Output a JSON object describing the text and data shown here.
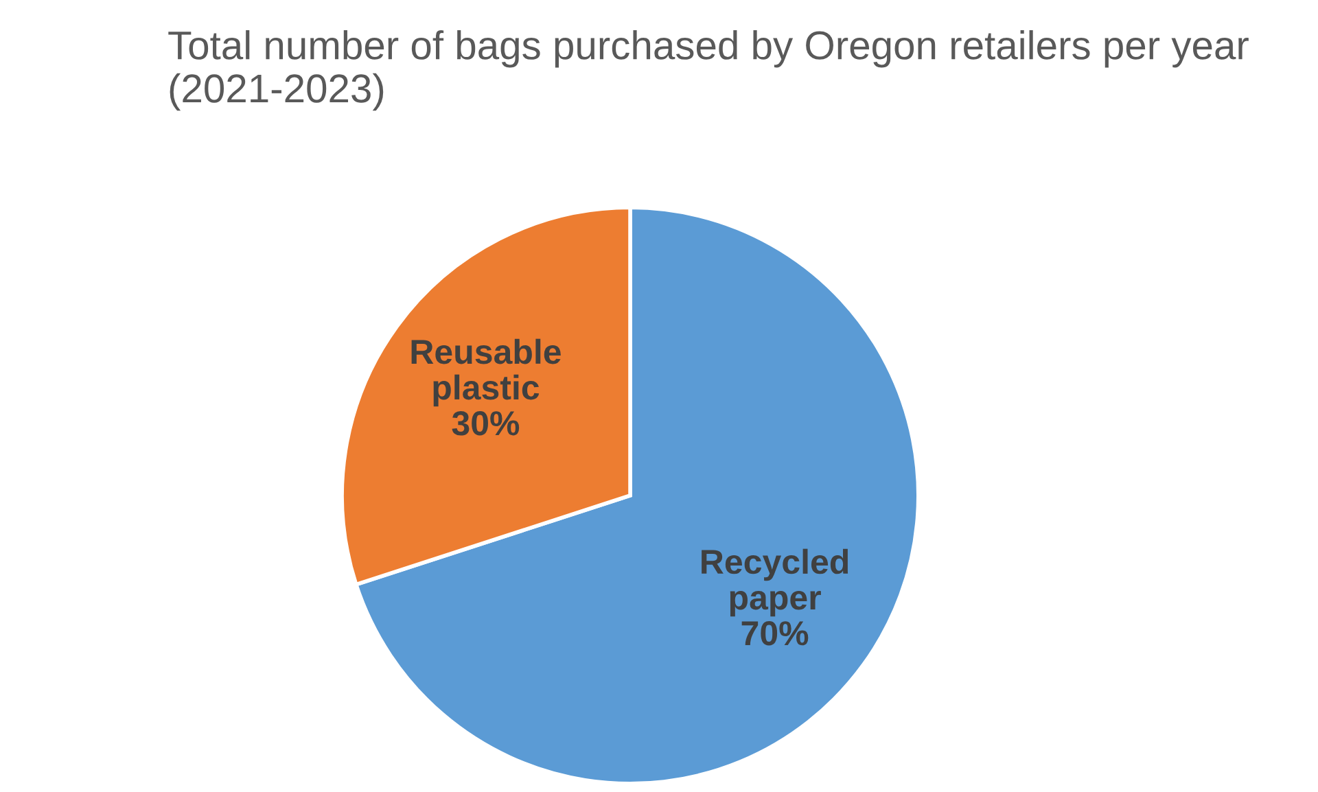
{
  "chart_data": {
    "type": "pie",
    "title": "Total number of bags purchased by Oregon retailers per year (2021-2023)",
    "categories": [
      "Recycled paper",
      "Reusable plastic"
    ],
    "values": [
      70,
      30
    ],
    "value_labels": [
      "70%",
      "30%"
    ],
    "colors": [
      "#5b9bd5",
      "#ed7d31"
    ],
    "legend": false
  }
}
